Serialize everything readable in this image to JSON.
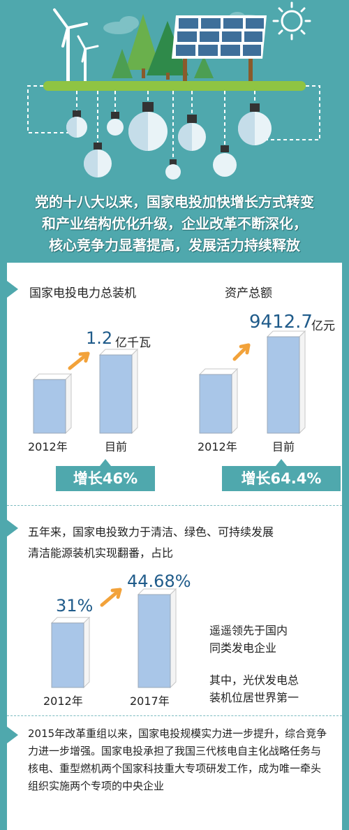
{
  "headline": {
    "line1": "党的十八大以来，国家电投加快增长方式转变",
    "line2": "和产业结构优化升级，企业改革不断深化，",
    "line3": "核心竞争力显著提高，发展活力持续释放"
  },
  "capacity": {
    "title": "国家电投电力总装机",
    "value_number": "1.2",
    "value_unit": "亿千瓦",
    "growth": "增长46%"
  },
  "assets": {
    "title": "资产总额",
    "value_number": "9412.7",
    "value_unit": "亿元",
    "growth": "增长64.4%"
  },
  "clean": {
    "intro1": "五年来，国家电投致力于清洁、绿色、可持续发展",
    "intro2": "清洁能源装机实现翻番，占比",
    "note1a": "遥遥领先于国内",
    "note1b": "同类发电企业",
    "note2a": "其中，光伏发电总",
    "note2b": "装机位居世界第一"
  },
  "paragraph": "2015年改革重组以来，国家电投规模实力进一步提升，综合竞争力进一步增强。国家电投承担了我国三代核电自主化战略任务与核电、重型燃机两个国家科技重大专项研发工作，成为唯一牵头组织实施两个专项的中央企业",
  "chart_data": [
    {
      "type": "bar",
      "categories": [
        "2012年",
        "目前"
      ],
      "series": [
        {
          "values": [
            0.822,
            1.2
          ]
        }
      ],
      "title": "国家电投电力总装机",
      "unit": "亿千瓦",
      "annotation": "增长46%"
    },
    {
      "type": "bar",
      "categories": [
        "2012年",
        "目前"
      ],
      "series": [
        {
          "values": [
            5727,
            9412.7
          ]
        }
      ],
      "title": "资产总额",
      "unit": "亿元",
      "annotation": "增长64.4%"
    },
    {
      "type": "bar",
      "categories": [
        "2012年",
        "2017年"
      ],
      "series": [
        {
          "values": [
            31,
            44.68
          ]
        }
      ],
      "title": "",
      "unit": "%",
      "data_labels": [
        "31%",
        "44.68%"
      ]
    }
  ],
  "colors": {
    "teal": "#4fa8ad",
    "bar_fill": "#a9c6e8",
    "value_text": "#1f5b8a",
    "arrow": "#f2a23a"
  }
}
